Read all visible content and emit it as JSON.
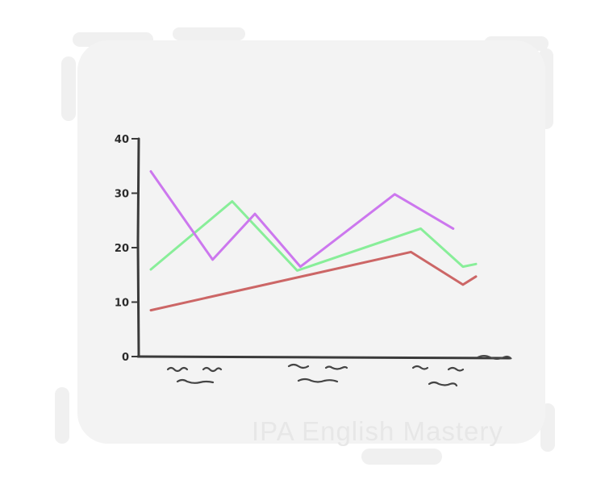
{
  "watermark": "IPA English Mastery",
  "chart_data": {
    "type": "line",
    "ylim": [
      0,
      40
    ],
    "yticks": [
      "0",
      "10",
      "20",
      "30",
      "40"
    ],
    "x": [
      0,
      1,
      2,
      3,
      4,
      5,
      6,
      7,
      8,
      9,
      10,
      11
    ],
    "series": [
      {
        "color": "#cc6666",
        "x": [
          0,
          8,
          9.6,
          10
        ],
        "values": [
          8.5,
          19.2,
          13.2,
          14.7
        ]
      },
      {
        "color": "#88ee99",
        "x": [
          0,
          2.5,
          4.5,
          8.3,
          9.6,
          10
        ],
        "values": [
          16,
          28.5,
          15.8,
          23.5,
          16.5,
          17
        ]
      },
      {
        "color": "#cc77ee",
        "x": [
          0,
          1.9,
          3.2,
          4.6,
          7.5,
          9.3
        ],
        "values": [
          34,
          17.8,
          26.2,
          16.5,
          29.8,
          23.5
        ]
      }
    ],
    "grid": false,
    "legend": "none"
  }
}
